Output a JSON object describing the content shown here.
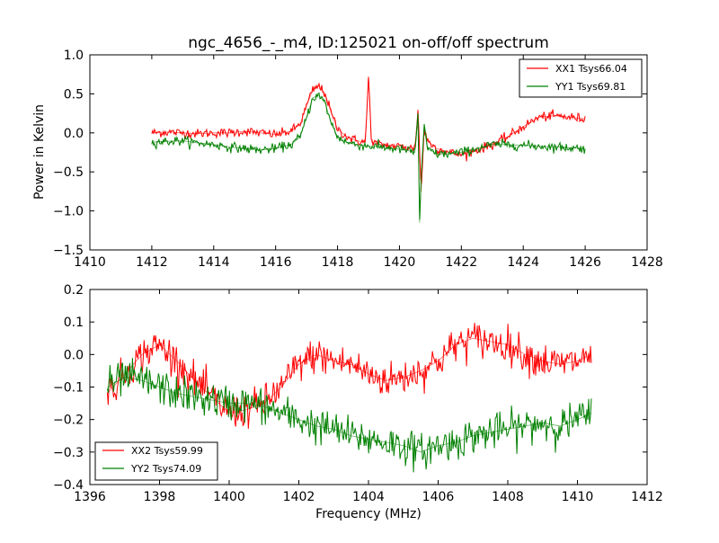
{
  "chart_data": [
    {
      "type": "line",
      "title": "ngc_4656_-_m4, ID:125021 on-off/off spectrum",
      "xlabel": "",
      "ylabel": "Power in Kelvin",
      "xlim": [
        1410,
        1428
      ],
      "ylim": [
        -1.5,
        1.0
      ],
      "xticks": [
        1410,
        1412,
        1414,
        1416,
        1418,
        1420,
        1422,
        1424,
        1426,
        1428
      ],
      "yticks": [
        -1.5,
        -1.0,
        -0.5,
        0.0,
        0.5,
        1.0
      ],
      "xtick_labels": [
        "1410",
        "1412",
        "1414",
        "1416",
        "1418",
        "1420",
        "1422",
        "1424",
        "1426",
        "1428"
      ],
      "ytick_labels": [
        "−1.5",
        "−1.0",
        "−0.5",
        "0.0",
        "0.5",
        "1.0"
      ],
      "grid": false,
      "legend": "top-right",
      "series": [
        {
          "name": "XX1 Tsys66.04",
          "color": "#ff0000",
          "x": [
            1412.0,
            1412.5,
            1413.0,
            1413.5,
            1414.0,
            1414.5,
            1415.0,
            1415.5,
            1416.0,
            1416.5,
            1416.8,
            1417.0,
            1417.2,
            1417.4,
            1417.6,
            1417.8,
            1418.0,
            1418.3,
            1418.6,
            1418.9,
            1419.0,
            1419.1,
            1419.4,
            1419.8,
            1420.2,
            1420.5,
            1420.6,
            1420.7,
            1420.8,
            1420.9,
            1421.2,
            1421.6,
            1422.0,
            1422.5,
            1423.0,
            1423.5,
            1424.0,
            1424.5,
            1425.0,
            1425.5,
            1426.0
          ],
          "y": [
            0.0,
            0.01,
            0.0,
            -0.01,
            0.0,
            0.0,
            0.02,
            0.0,
            -0.02,
            0.02,
            0.12,
            0.35,
            0.55,
            0.6,
            0.5,
            0.25,
            0.05,
            -0.05,
            -0.1,
            -0.12,
            0.72,
            -0.12,
            -0.15,
            -0.17,
            -0.18,
            -0.2,
            0.3,
            -0.75,
            0.05,
            -0.1,
            -0.2,
            -0.25,
            -0.28,
            -0.22,
            -0.15,
            -0.05,
            0.08,
            0.2,
            0.22,
            0.2,
            0.18
          ]
        },
        {
          "name": "YY1 Tsys69.81",
          "color": "#008000",
          "x": [
            1412.0,
            1412.5,
            1413.0,
            1413.5,
            1414.0,
            1414.5,
            1415.0,
            1415.5,
            1416.0,
            1416.5,
            1416.8,
            1417.0,
            1417.2,
            1417.4,
            1417.6,
            1417.8,
            1418.0,
            1418.3,
            1418.6,
            1419.0,
            1419.4,
            1419.8,
            1420.2,
            1420.5,
            1420.6,
            1420.65,
            1420.7,
            1420.8,
            1420.9,
            1421.2,
            1421.6,
            1422.0,
            1422.5,
            1423.0,
            1423.5,
            1424.0,
            1424.5,
            1425.0,
            1425.5,
            1426.0
          ],
          "y": [
            -0.12,
            -0.11,
            -0.1,
            -0.13,
            -0.15,
            -0.18,
            -0.2,
            -0.22,
            -0.2,
            -0.15,
            -0.05,
            0.2,
            0.45,
            0.48,
            0.38,
            0.12,
            -0.05,
            -0.12,
            -0.15,
            -0.17,
            -0.18,
            -0.2,
            -0.22,
            -0.25,
            0.25,
            -1.15,
            -0.6,
            0.08,
            -0.2,
            -0.27,
            -0.27,
            -0.25,
            -0.2,
            -0.15,
            -0.15,
            -0.16,
            -0.17,
            -0.18,
            -0.19,
            -0.2
          ]
        }
      ]
    },
    {
      "type": "line",
      "title": "",
      "xlabel": "Frequency (MHz)",
      "ylabel": "",
      "xlim": [
        1396,
        1412
      ],
      "ylim": [
        -0.4,
        0.2
      ],
      "xticks": [
        1396,
        1398,
        1400,
        1402,
        1404,
        1406,
        1408,
        1410,
        1412
      ],
      "yticks": [
        -0.4,
        -0.3,
        -0.2,
        -0.1,
        0.0,
        0.1,
        0.2
      ],
      "xtick_labels": [
        "1396",
        "1398",
        "1400",
        "1402",
        "1404",
        "1406",
        "1408",
        "1410",
        "1412"
      ],
      "ytick_labels": [
        "−0.4",
        "−0.3",
        "−0.2",
        "−0.1",
        "0.0",
        "0.1",
        "0.2"
      ],
      "grid": false,
      "legend": "bottom-left",
      "series": [
        {
          "name": "XX2 Tsys59.99",
          "color": "#ff0000",
          "x": [
            1396.5,
            1397.0,
            1397.5,
            1398.0,
            1398.5,
            1399.0,
            1399.5,
            1400.0,
            1400.5,
            1401.0,
            1401.5,
            1402.0,
            1402.5,
            1403.0,
            1403.5,
            1404.0,
            1404.5,
            1405.0,
            1405.5,
            1406.0,
            1406.5,
            1407.0,
            1407.5,
            1408.0,
            1408.5,
            1409.0,
            1409.5,
            1410.0,
            1410.4
          ],
          "y": [
            -0.12,
            -0.06,
            0.0,
            0.03,
            -0.02,
            -0.08,
            -0.13,
            -0.18,
            -0.17,
            -0.15,
            -0.1,
            -0.03,
            0.0,
            -0.02,
            -0.03,
            -0.06,
            -0.08,
            -0.07,
            -0.05,
            -0.02,
            0.03,
            0.05,
            0.04,
            0.03,
            0.0,
            -0.02,
            -0.03,
            -0.02,
            0.0
          ]
        },
        {
          "name": "YY2 Tsys74.09",
          "color": "#008000",
          "x": [
            1396.5,
            1397.0,
            1397.5,
            1398.0,
            1398.5,
            1399.0,
            1399.5,
            1400.0,
            1400.5,
            1401.0,
            1401.5,
            1402.0,
            1402.5,
            1403.0,
            1403.5,
            1404.0,
            1404.5,
            1405.0,
            1405.5,
            1406.0,
            1406.5,
            1407.0,
            1407.5,
            1408.0,
            1408.5,
            1409.0,
            1409.5,
            1410.0,
            1410.4
          ],
          "y": [
            -0.1,
            -0.07,
            -0.08,
            -0.1,
            -0.12,
            -0.13,
            -0.14,
            -0.15,
            -0.15,
            -0.16,
            -0.18,
            -0.2,
            -0.22,
            -0.23,
            -0.25,
            -0.26,
            -0.27,
            -0.28,
            -0.3,
            -0.28,
            -0.27,
            -0.25,
            -0.24,
            -0.23,
            -0.22,
            -0.21,
            -0.22,
            -0.2,
            -0.18
          ]
        }
      ]
    }
  ]
}
